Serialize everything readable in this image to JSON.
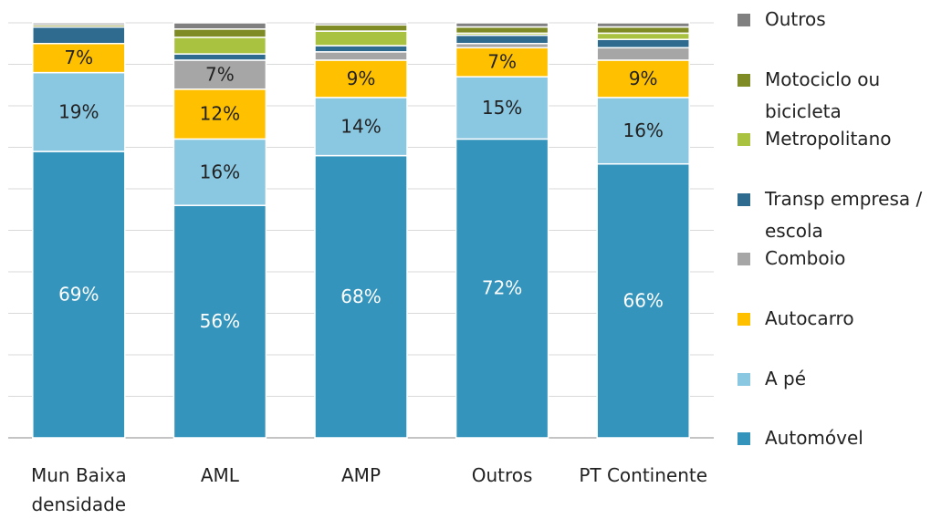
{
  "chart_data": {
    "type": "stacked_bar",
    "categories": [
      "Mun Baixa densidade",
      "AML",
      "AMP",
      "Outros",
      "PT Continente"
    ],
    "ylim": [
      0,
      100
    ],
    "yticks": [
      0,
      10,
      20,
      30,
      40,
      50,
      60,
      70,
      80,
      90,
      100
    ],
    "grid": true,
    "legend": "right",
    "series": [
      {
        "name": "Automóvel",
        "color": "#3594bc",
        "values": [
          69,
          56,
          68,
          72,
          66
        ],
        "value_labels": [
          "69%",
          "56%",
          "68%",
          "72%",
          "66%"
        ]
      },
      {
        "name": "A pé",
        "color": "#8ac7e1",
        "values": [
          19,
          16,
          14,
          15,
          16
        ],
        "value_labels": [
          "19%",
          "16%",
          "14%",
          "15%",
          "16%"
        ]
      },
      {
        "name": "Autocarro",
        "color": "#ffc000",
        "values": [
          7,
          12,
          9,
          7,
          9
        ],
        "value_labels": [
          "7%",
          "12%",
          "9%",
          "7%",
          "9%"
        ]
      },
      {
        "name": "Comboio",
        "color": "#a6a6a6",
        "values": [
          0,
          7,
          2,
          1,
          3
        ],
        "value_labels": [
          null,
          "7%",
          null,
          null,
          null
        ]
      },
      {
        "name": "Transp empresa / escola",
        "color": "#2e6b8e",
        "values": [
          4,
          1.5,
          1.5,
          2,
          2
        ],
        "value_labels": [
          null,
          null,
          null,
          null,
          null
        ]
      },
      {
        "name": "Metropolitano",
        "color": "#a9c23f",
        "values": [
          0,
          4,
          3.5,
          0.5,
          1.5
        ],
        "value_labels": [
          null,
          null,
          null,
          null,
          null
        ]
      },
      {
        "name": "Motociclo ou bicicleta",
        "color": "#7f8b24",
        "values": [
          0.5,
          2,
          1.5,
          1.5,
          1.5
        ],
        "value_labels": [
          null,
          null,
          null,
          null,
          null
        ]
      },
      {
        "name": "Outros",
        "color": "#808080",
        "values": [
          0.5,
          1.5,
          0.5,
          1,
          1
        ],
        "value_labels": [
          null,
          null,
          null,
          null,
          null
        ]
      }
    ]
  }
}
